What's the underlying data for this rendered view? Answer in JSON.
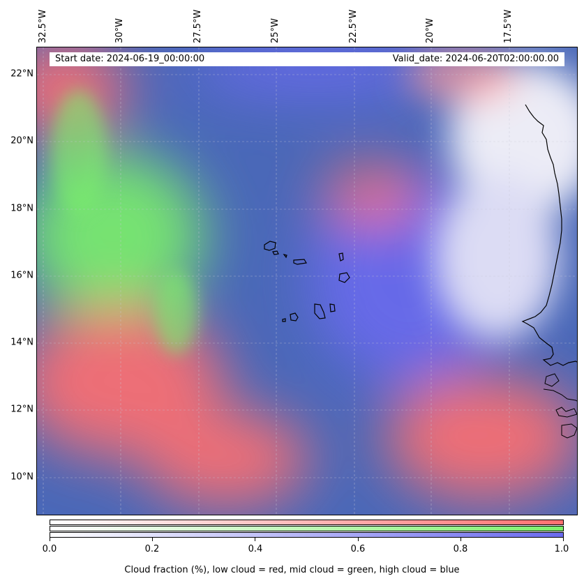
{
  "map": {
    "start_date": "Start date: 2024-06-19_00:00:00",
    "valid_date": "Valid_date: 2024-06-20T02:00:00.00",
    "lon_labels": [
      "32.5°W",
      "30°W",
      "27.5°W",
      "25°W",
      "22.5°W",
      "20°W",
      "17.5°W"
    ],
    "lat_labels": [
      "22°N",
      "20°N",
      "18°N",
      "16°N",
      "14°N",
      "12°N",
      "10°N"
    ],
    "colors": {
      "low_cloud": "#ff7070",
      "mid_cloud": "#7cf06a",
      "high_cloud": "#6a6aee",
      "clear_sky": "#4a68b8"
    }
  },
  "colorbar": {
    "ticks": [
      "0.0",
      "0.2",
      "0.4",
      "0.6",
      "0.8",
      "1.0"
    ],
    "caption": "Cloud fraction (%), low cloud = red, mid cloud = green, high cloud = blue"
  }
}
